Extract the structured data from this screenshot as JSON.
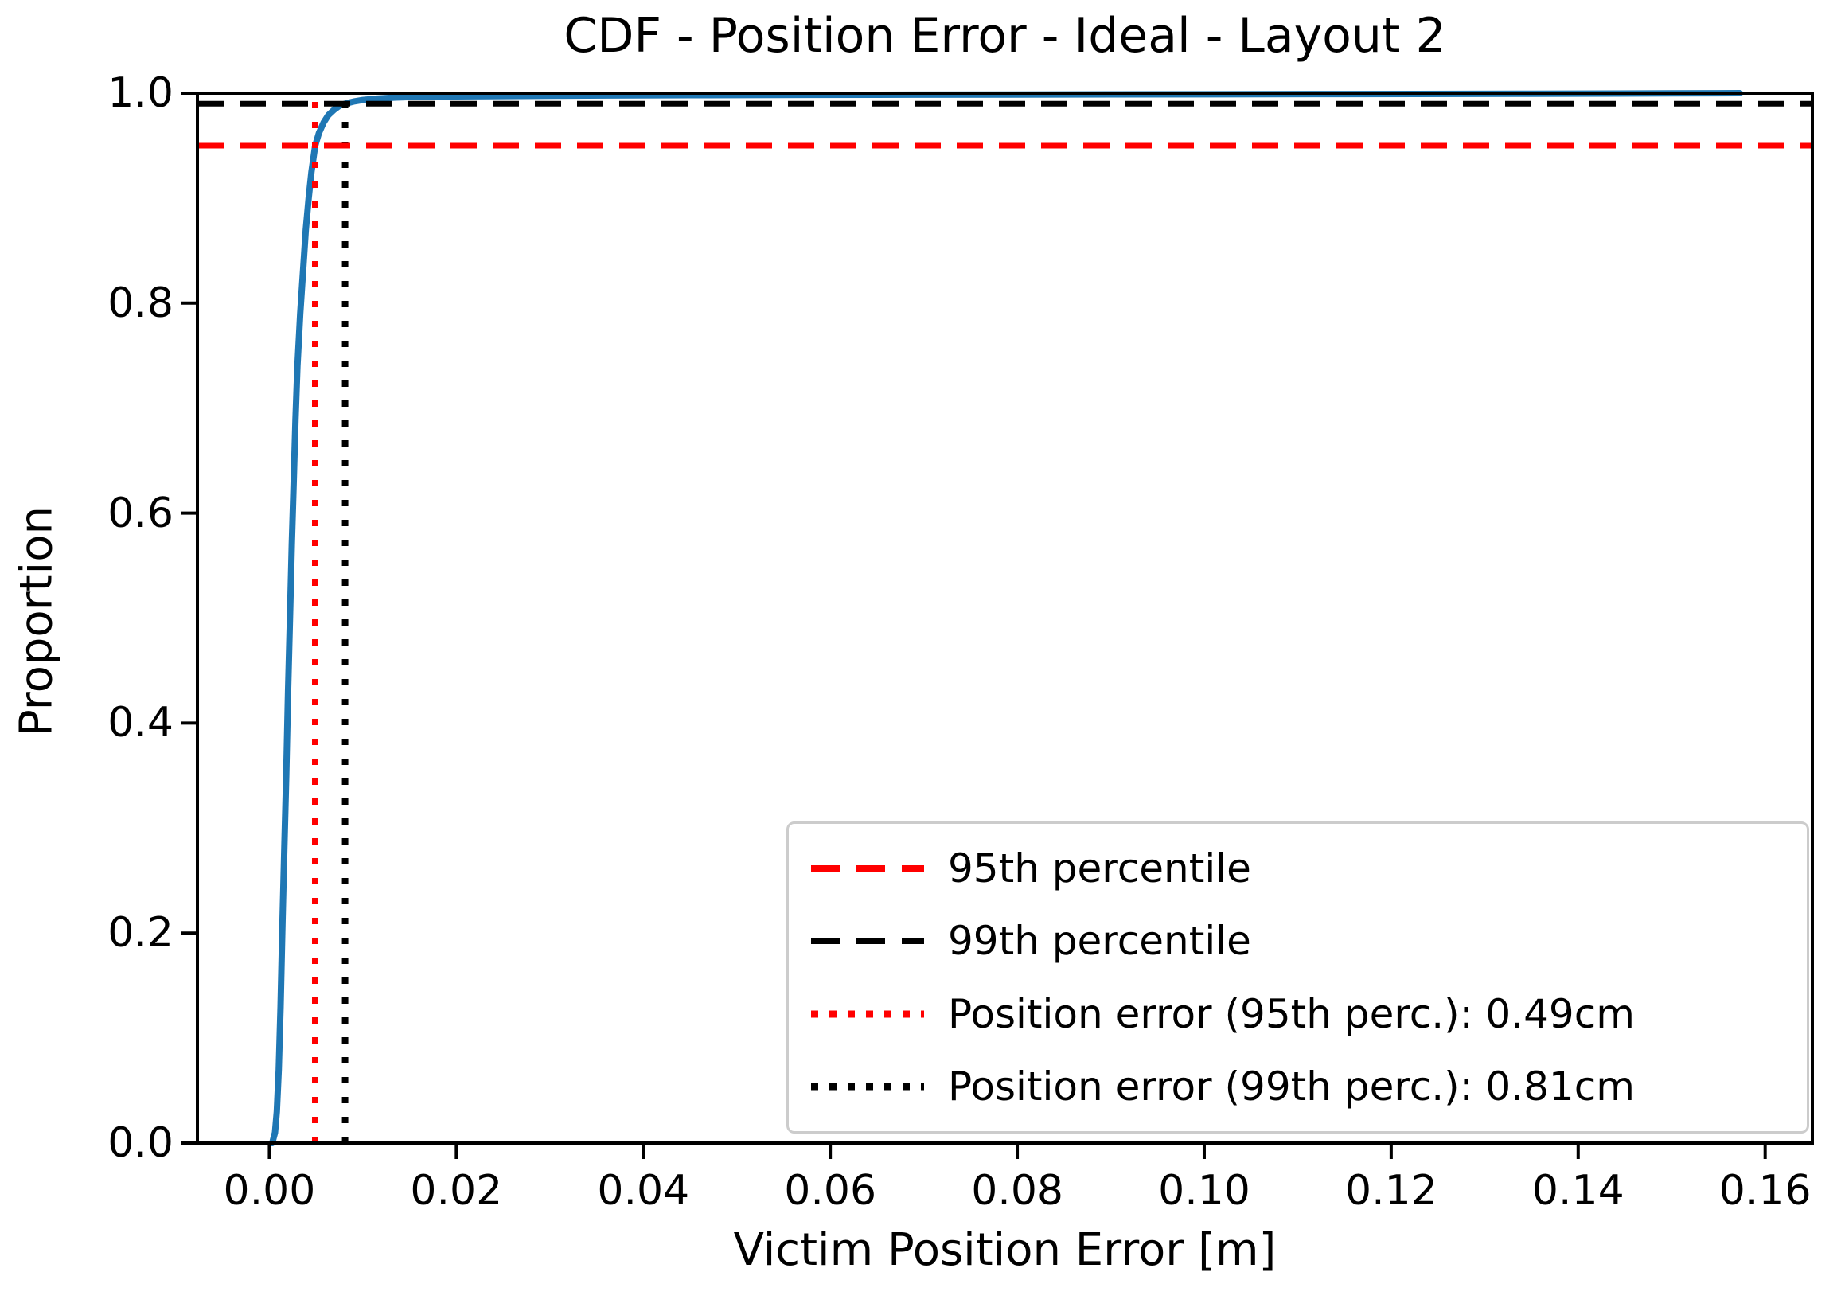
{
  "title": "CDF - Position Error - Ideal - Layout 2",
  "axes": {
    "xlabel": "Victim Position Error [m]",
    "ylabel": "Proportion"
  },
  "legend": {
    "items": [
      {
        "label": "95th percentile",
        "color": "#ff0000",
        "linestyle": "dashed"
      },
      {
        "label": "99th percentile",
        "color": "#000000",
        "linestyle": "dashed"
      },
      {
        "label": "Position error (95th perc.): 0.49cm",
        "color": "#ff0000",
        "linestyle": "dotted"
      },
      {
        "label": "Position error (99th perc.): 0.81cm",
        "color": "#000000",
        "linestyle": "dotted"
      }
    ]
  },
  "colors": {
    "curve": "#1f77b4",
    "percentile_95": "#ff0000",
    "percentile_99": "#000000",
    "axis": "#000000",
    "legend_border": "#cccccc",
    "background": "#ffffff"
  },
  "chart_data": {
    "type": "line",
    "title": "CDF - Position Error - Ideal - Layout 2",
    "xlabel": "Victim Position Error [m]",
    "ylabel": "Proportion",
    "xlim": [
      -0.0077,
      0.16505
    ],
    "ylim": [
      0.0,
      1.0
    ],
    "x_ticks": [
      0.0,
      0.02,
      0.04,
      0.06,
      0.08,
      0.1,
      0.12,
      0.14,
      0.16
    ],
    "x_tick_labels": [
      "0.00",
      "0.02",
      "0.04",
      "0.06",
      "0.08",
      "0.10",
      "0.12",
      "0.14",
      "0.16"
    ],
    "y_ticks": [
      0.0,
      0.2,
      0.4,
      0.6,
      0.8,
      1.0
    ],
    "y_tick_labels": [
      "0.0",
      "0.2",
      "0.4",
      "0.6",
      "0.8",
      "1.0"
    ],
    "grid": false,
    "legend_position": "lower right",
    "series": [
      {
        "name": "ecdf-curve",
        "type": "line",
        "color": "#1f77b4",
        "linestyle": "solid",
        "points": [
          [
            0.0003,
            0.0
          ],
          [
            0.0006,
            0.01
          ],
          [
            0.0008,
            0.03
          ],
          [
            0.001,
            0.07
          ],
          [
            0.0012,
            0.13
          ],
          [
            0.0014,
            0.21
          ],
          [
            0.0016,
            0.28
          ],
          [
            0.0018,
            0.35
          ],
          [
            0.002,
            0.43
          ],
          [
            0.0022,
            0.5
          ],
          [
            0.0024,
            0.57
          ],
          [
            0.0026,
            0.63
          ],
          [
            0.0028,
            0.69
          ],
          [
            0.003,
            0.74
          ],
          [
            0.0033,
            0.79
          ],
          [
            0.0036,
            0.83
          ],
          [
            0.0039,
            0.87
          ],
          [
            0.0042,
            0.9
          ],
          [
            0.0045,
            0.925
          ],
          [
            0.0049,
            0.95
          ],
          [
            0.0053,
            0.962
          ],
          [
            0.0058,
            0.972
          ],
          [
            0.0063,
            0.979
          ],
          [
            0.0069,
            0.984
          ],
          [
            0.0075,
            0.988
          ],
          [
            0.0081,
            0.99
          ],
          [
            0.009,
            0.992
          ],
          [
            0.01,
            0.9935
          ],
          [
            0.0115,
            0.9948
          ],
          [
            0.0135,
            0.9958
          ],
          [
            0.016,
            0.9965
          ],
          [
            0.02,
            0.997
          ],
          [
            0.03,
            0.9976
          ],
          [
            0.045,
            0.9981
          ],
          [
            0.065,
            0.9985
          ],
          [
            0.09,
            0.9989
          ],
          [
            0.115,
            0.9992
          ],
          [
            0.135,
            0.9995
          ],
          [
            0.15,
            0.9998
          ],
          [
            0.1573,
            1.0
          ]
        ]
      },
      {
        "name": "95th percentile",
        "type": "hline",
        "y": 0.95,
        "color": "#ff0000",
        "linestyle": "dashed"
      },
      {
        "name": "99th percentile",
        "type": "hline",
        "y": 0.99,
        "color": "#000000",
        "linestyle": "dashed"
      },
      {
        "name": "Position error (95th perc.): 0.49cm",
        "type": "vline",
        "x": 0.0049,
        "color": "#ff0000",
        "linestyle": "dotted"
      },
      {
        "name": "Position error (99th perc.): 0.81cm",
        "type": "vline",
        "x": 0.0081,
        "color": "#000000",
        "linestyle": "dotted"
      }
    ],
    "percentile_values": {
      "position_error_95th_cm": 0.49,
      "position_error_99th_cm": 0.81
    }
  }
}
